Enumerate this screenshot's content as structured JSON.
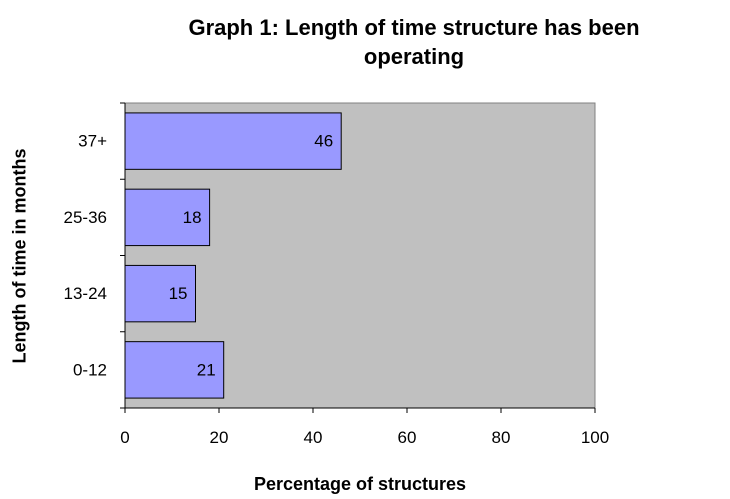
{
  "chart_data": {
    "type": "bar",
    "orientation": "horizontal",
    "title": "Graph 1: Length of time structure has been operating",
    "title_lines": [
      "Graph 1: Length of time structure has been",
      "operating"
    ],
    "xlabel": "Percentage of structures",
    "ylabel": "Length of time in months",
    "categories": [
      "0-12",
      "13-24",
      "25-36",
      "37+"
    ],
    "values": [
      21,
      15,
      18,
      46
    ],
    "data_labels": [
      "21",
      "15",
      "18",
      "46"
    ],
    "xlim": [
      0,
      100
    ],
    "xticks": [
      "0",
      "20",
      "40",
      "60",
      "80",
      "100"
    ],
    "grid": false,
    "legend": "none",
    "colors": {
      "bar_fill": "#9999ff",
      "plot_background": "#c0c0c0",
      "bar_border": "#000000"
    }
  }
}
